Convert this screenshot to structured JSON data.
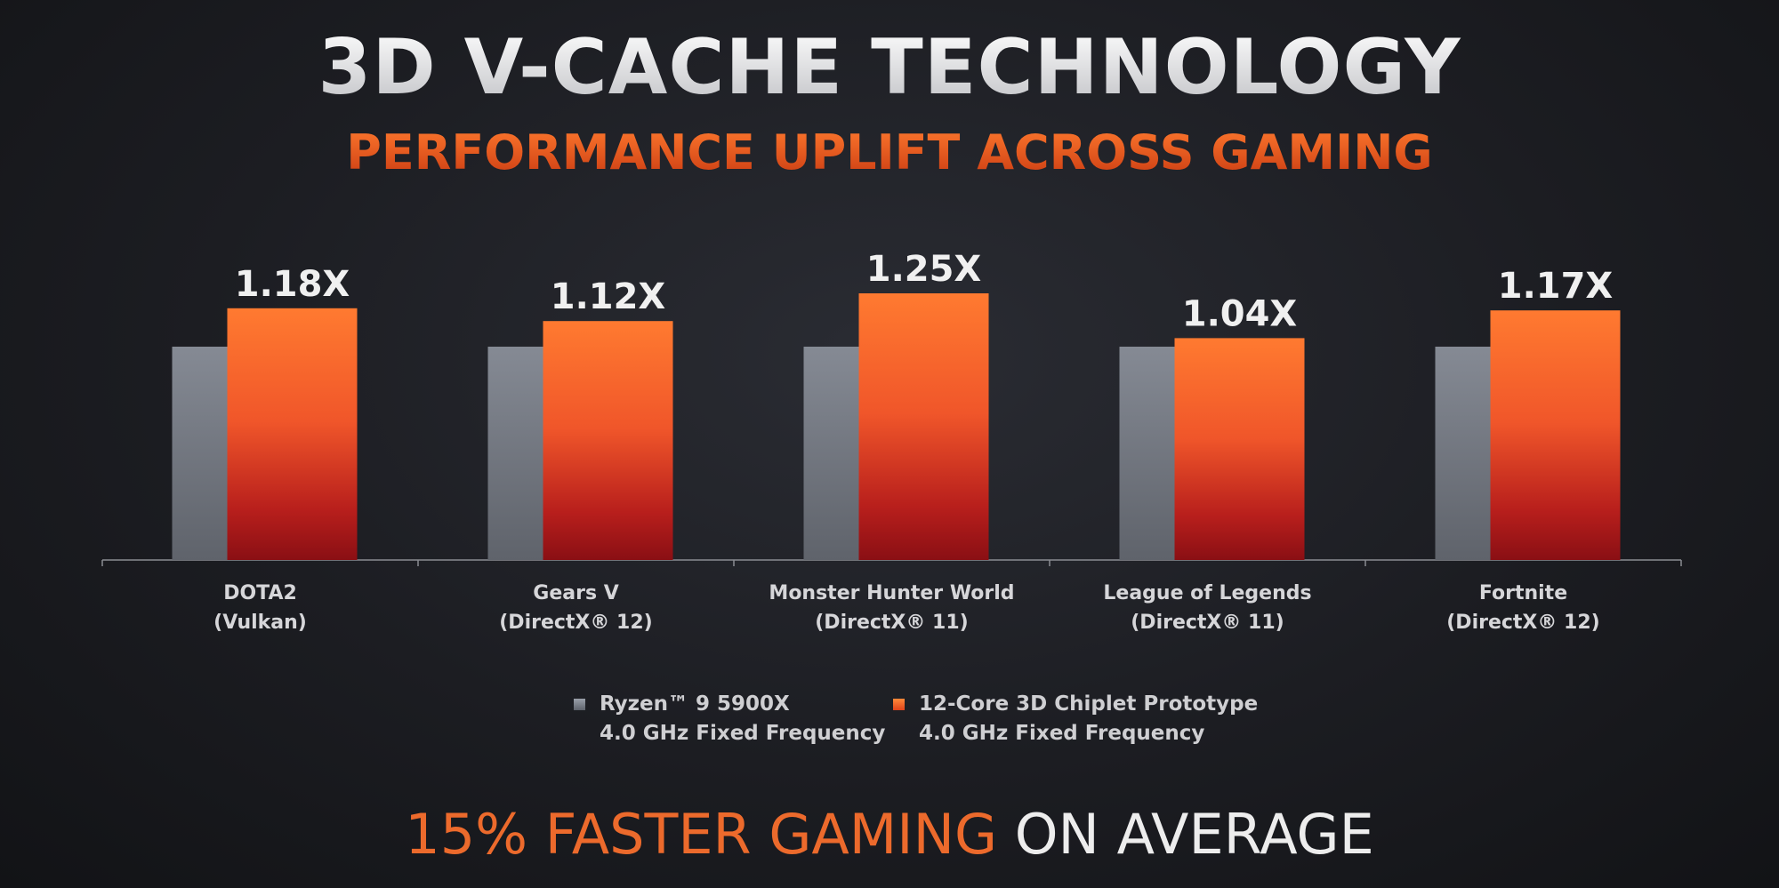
{
  "slide": {
    "title": "3D V-CACHE TECHNOLOGY",
    "subtitle": "PERFORMANCE UPLIFT ACROSS GAMING",
    "footer_highlight": "15% FASTER GAMING",
    "footer_rest": "ON AVERAGE"
  },
  "colors": {
    "baseline": "#7b808a",
    "prototype_top": "#ff7a30",
    "prototype_bottom": "#8a0f14",
    "highlight": "#ec6a2c"
  },
  "legend": [
    {
      "line1": "Ryzen™ 9 5900X",
      "line2": "4.0 GHz Fixed Frequency"
    },
    {
      "line1": "12-Core 3D Chiplet Prototype",
      "line2": "4.0 GHz Fixed Frequency"
    }
  ],
  "chart_data": {
    "type": "bar",
    "categories": [
      {
        "name": "DOTA2",
        "api": "(Vulkan)"
      },
      {
        "name": "Gears V",
        "api": "(DirectX® 12)"
      },
      {
        "name": "Monster Hunter World",
        "api": "(DirectX® 11)"
      },
      {
        "name": "League of Legends",
        "api": "(DirectX® 11)"
      },
      {
        "name": "Fortnite",
        "api": "(DirectX® 12)"
      }
    ],
    "series": [
      {
        "name": "Ryzen™ 9 5900X 4.0 GHz Fixed Frequency",
        "values": [
          1.0,
          1.0,
          1.0,
          1.0,
          1.0
        ]
      },
      {
        "name": "12-Core 3D Chiplet Prototype 4.0 GHz Fixed Frequency",
        "values": [
          1.18,
          1.12,
          1.25,
          1.04,
          1.17
        ]
      }
    ],
    "data_labels": [
      "1.18X",
      "1.12X",
      "1.25X",
      "1.04X",
      "1.17X"
    ],
    "ylim": [
      0,
      1.3
    ],
    "grid": false,
    "legend_position": "bottom-center"
  }
}
